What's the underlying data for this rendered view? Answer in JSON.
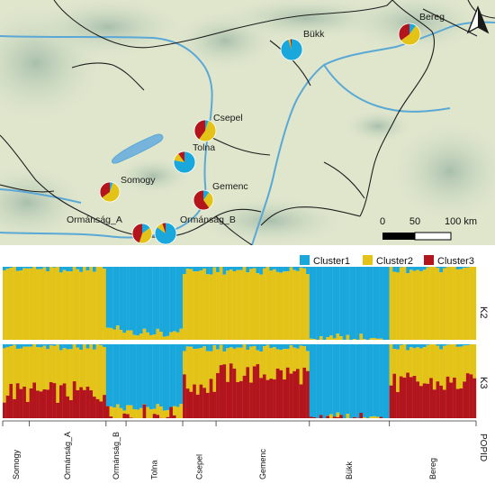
{
  "map": {
    "places": [
      {
        "name": "Bükk",
        "cluster1": 0.95,
        "cluster2": 0.03,
        "cluster3": 0.02
      },
      {
        "name": "Bereg",
        "cluster1": 0.1,
        "cluster2": 0.55,
        "cluster3": 0.35
      },
      {
        "name": "Csepel",
        "cluster1": 0.05,
        "cluster2": 0.55,
        "cluster3": 0.4
      },
      {
        "name": "Tolna",
        "cluster1": 0.78,
        "cluster2": 0.12,
        "cluster3": 0.1
      },
      {
        "name": "Gemenc",
        "cluster1": 0.1,
        "cluster2": 0.3,
        "cluster3": 0.6
      },
      {
        "name": "Somogy",
        "cluster1": 0.05,
        "cluster2": 0.6,
        "cluster3": 0.35
      },
      {
        "name": "Ormánság_A",
        "cluster1": 0.15,
        "cluster2": 0.4,
        "cluster3": 0.45
      },
      {
        "name": "Ormánság_B",
        "cluster1": 0.85,
        "cluster2": 0.1,
        "cluster3": 0.05
      }
    ],
    "scale": {
      "ticks": [
        "0",
        "50",
        "100 km"
      ]
    },
    "north_label": "N"
  },
  "legend": [
    {
      "name": "Cluster1",
      "color": "#1aa7dc"
    },
    {
      "name": "Cluster2",
      "color": "#e3c318"
    },
    {
      "name": "Cluster3",
      "color": "#b3151d"
    }
  ],
  "rows": {
    "k2": "K2",
    "k3": "K3"
  },
  "populations": [
    "Somogy",
    "Ormánság_A",
    "Ormánság_B",
    "Tolna",
    "Csepel",
    "Gemenc",
    "Bükk",
    "Bereg"
  ],
  "popid_label": "POPID",
  "chart_data": {
    "type": "bar",
    "stacked": true,
    "series_colors": {
      "Cluster1": "#1aa7dc",
      "Cluster2": "#e3c318",
      "Cluster3": "#b3151d"
    },
    "groups": [
      {
        "population": "Somogy",
        "individuals": 8,
        "k2": {
          "Cluster1": 0.02,
          "Cluster2": 0.98
        },
        "k3": {
          "Cluster1": 0.03,
          "Cluster2": 0.62,
          "Cluster3": 0.35
        }
      },
      {
        "population": "Ormánság_A",
        "individuals": 23,
        "k2": {
          "Cluster1": 0.02,
          "Cluster2": 0.98
        },
        "k3": {
          "Cluster1": 0.03,
          "Cluster2": 0.62,
          "Cluster3": 0.35
        }
      },
      {
        "population": "Ormánság_B",
        "individuals": 6,
        "k2": {
          "Cluster1": 0.85,
          "Cluster2": 0.15
        },
        "k3": {
          "Cluster1": 0.85,
          "Cluster2": 0.1,
          "Cluster3": 0.05
        }
      },
      {
        "population": "Tolna",
        "individuals": 17,
        "k2": {
          "Cluster1": 0.9,
          "Cluster2": 0.1
        },
        "k3": {
          "Cluster1": 0.85,
          "Cluster2": 0.1,
          "Cluster3": 0.05
        }
      },
      {
        "population": "Csepel",
        "individuals": 10,
        "k2": {
          "Cluster1": 0.05,
          "Cluster2": 0.95
        },
        "k3": {
          "Cluster1": 0.05,
          "Cluster2": 0.5,
          "Cluster3": 0.45
        }
      },
      {
        "population": "Gemenc",
        "individuals": 28,
        "k2": {
          "Cluster1": 0.05,
          "Cluster2": 0.95
        },
        "k3": {
          "Cluster1": 0.05,
          "Cluster2": 0.35,
          "Cluster3": 0.6
        }
      },
      {
        "population": "Bükk",
        "individuals": 24,
        "k2": {
          "Cluster1": 0.97,
          "Cluster2": 0.03
        },
        "k3": {
          "Cluster1": 0.97,
          "Cluster2": 0.02,
          "Cluster3": 0.01
        }
      },
      {
        "population": "Bereg",
        "individuals": 26,
        "k2": {
          "Cluster1": 0.03,
          "Cluster2": 0.97
        },
        "k3": {
          "Cluster1": 0.03,
          "Cluster2": 0.5,
          "Cluster3": 0.47
        }
      }
    ]
  }
}
